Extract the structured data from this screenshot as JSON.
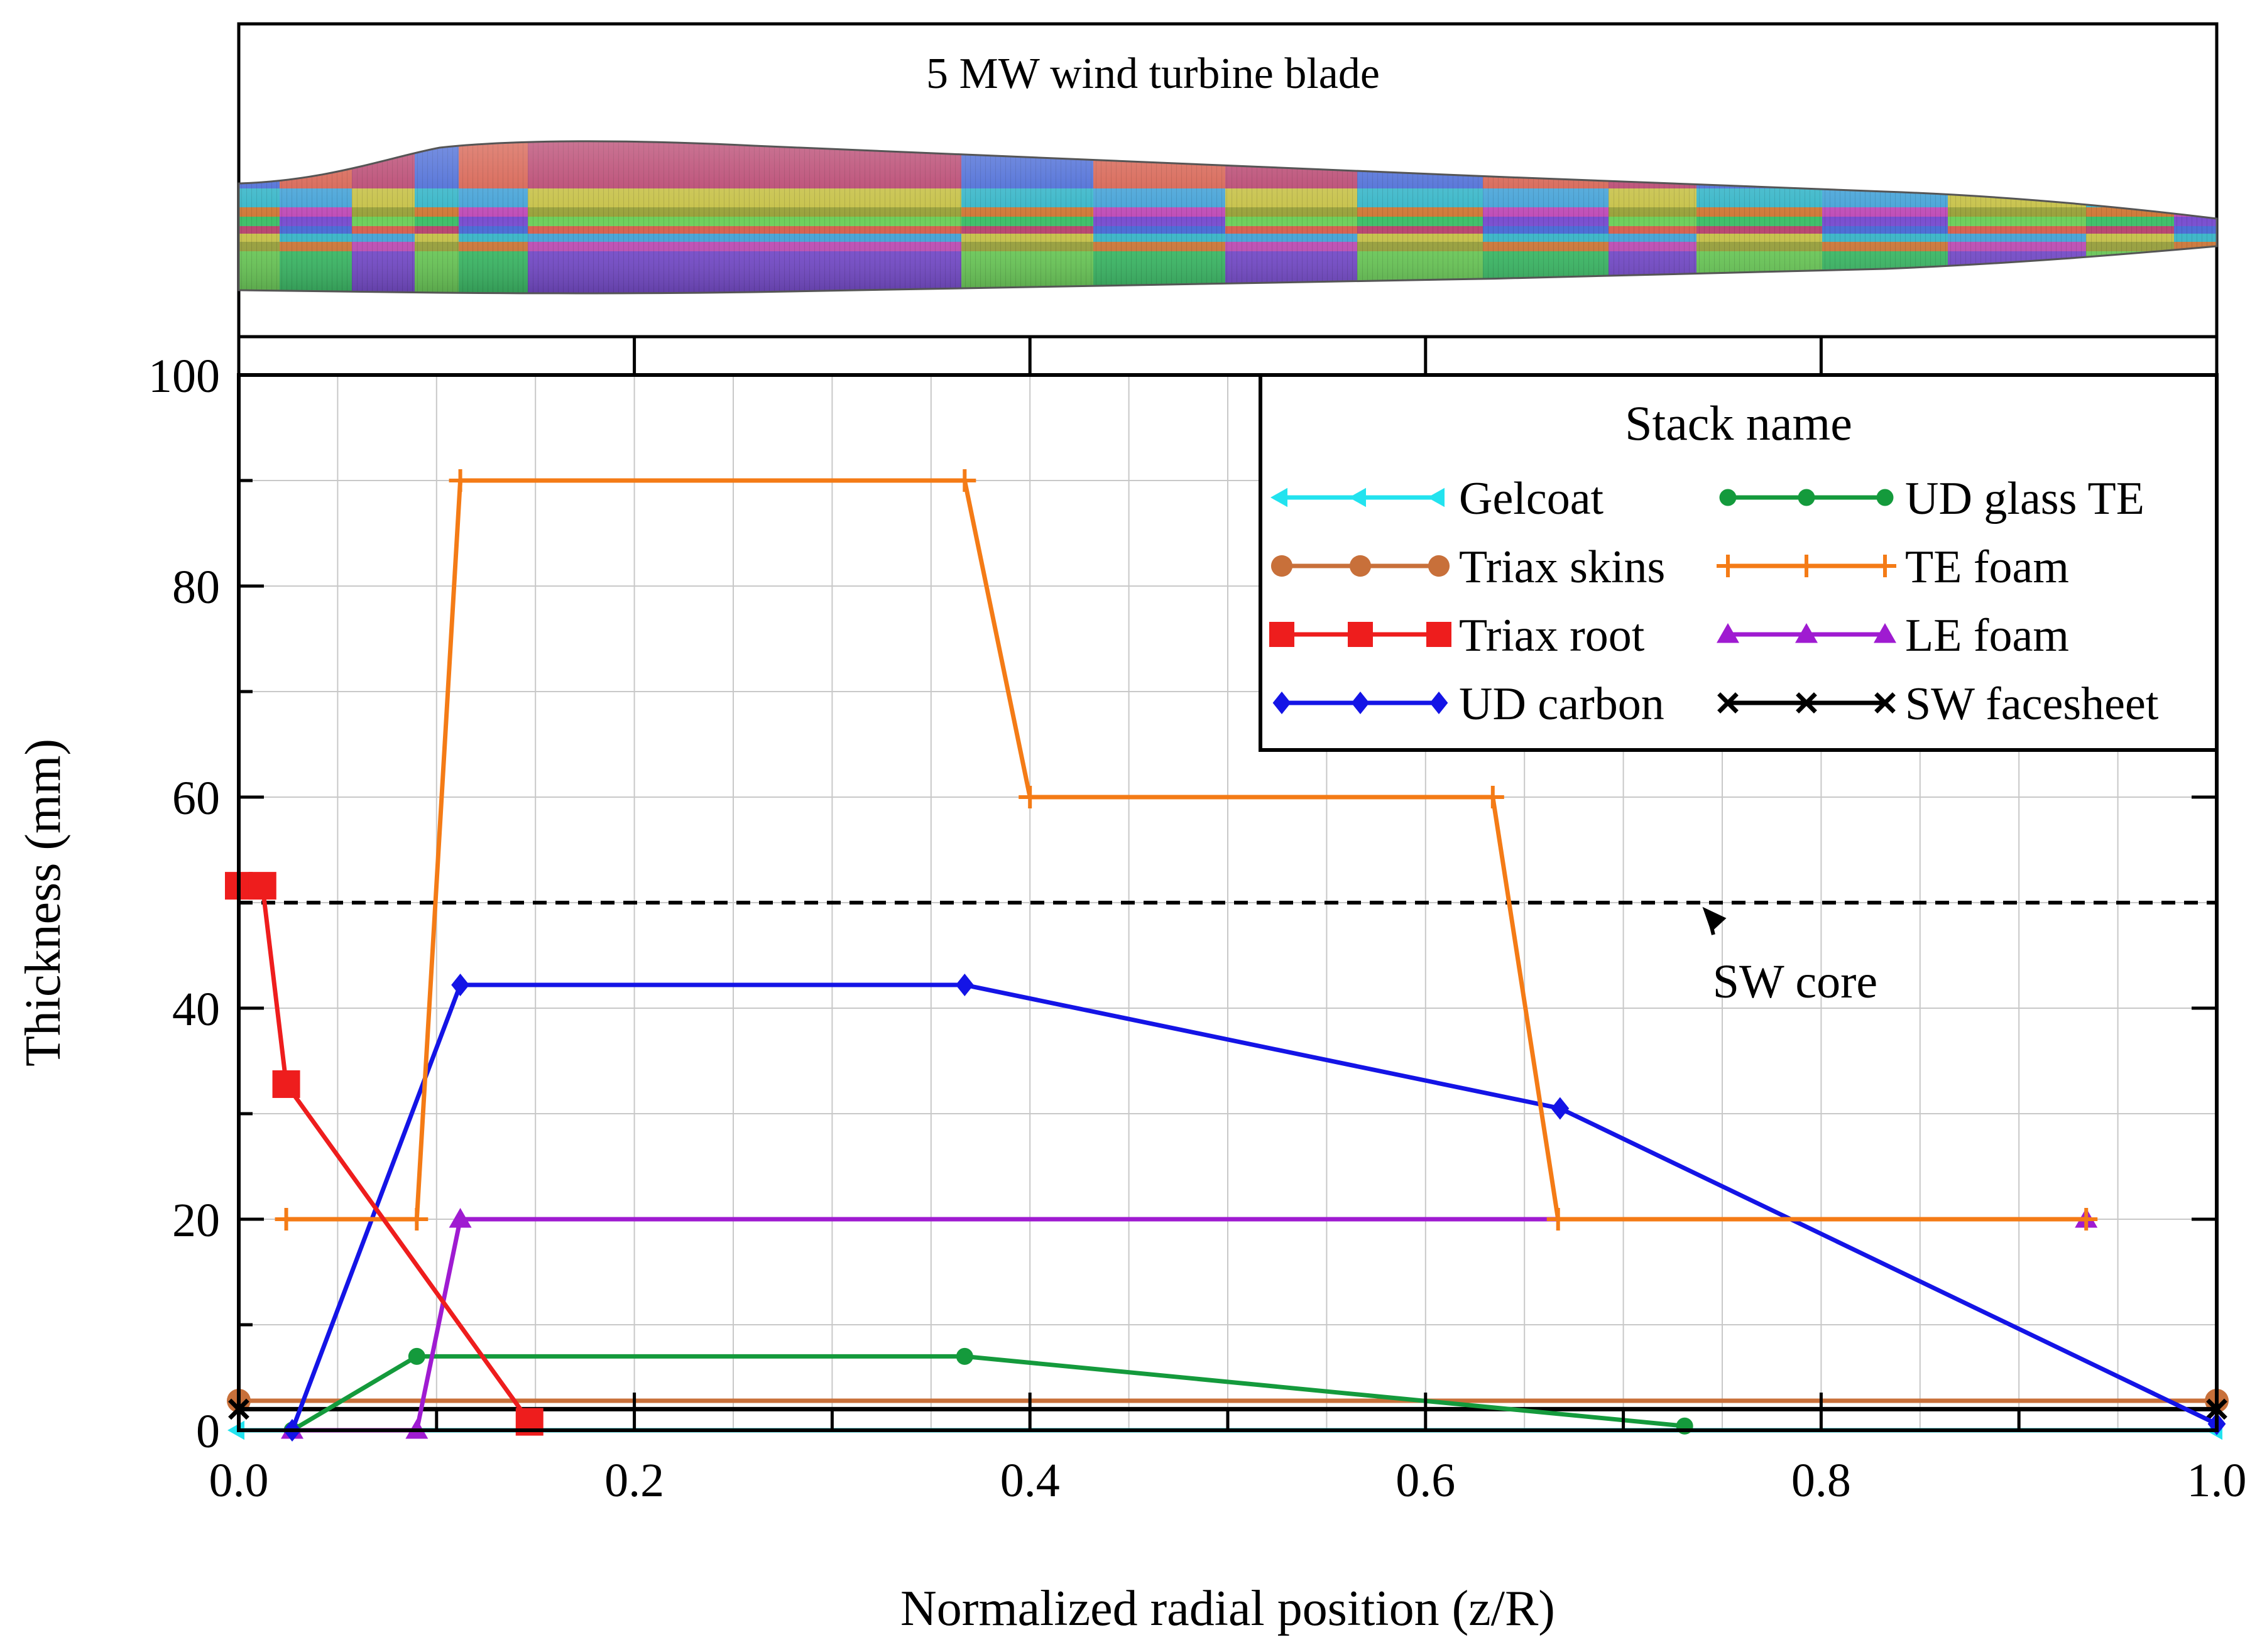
{
  "blade_panel": {
    "title": "5 MW wind turbine blade",
    "strip_colors": [
      "#4a6bd6",
      "#c7c24a",
      "#c04fb8",
      "#3fbf6a",
      "#d6604f",
      "#3ab7c9",
      "#9aa23c",
      "#7a4fd0",
      "#b8456f",
      "#48a4d8",
      "#d07a3a",
      "#6fcf5c"
    ],
    "image_label": "blade-mesh-illustration"
  },
  "chart_data": {
    "type": "line",
    "title": "",
    "xlabel": "Normalized radial position (z/R)",
    "ylabel": "Thickness (mm)",
    "xlim": [
      0.0,
      1.0
    ],
    "ylim": [
      0,
      100
    ],
    "xticks": [
      0.0,
      0.2,
      0.4,
      0.6,
      0.8,
      1.0
    ],
    "xtick_labels": [
      "0.0",
      "0.2",
      "0.4",
      "0.6",
      "0.8",
      "1.0"
    ],
    "yticks": [
      0,
      20,
      40,
      60,
      80,
      100
    ],
    "ytick_labels": [
      "0",
      "20",
      "40",
      "60",
      "80",
      "100"
    ],
    "grid": true,
    "legend_title": "Stack name",
    "legend_position": "top-right",
    "series": [
      {
        "name": "Gelcoat",
        "color": "#22e3ef",
        "marker": "tri-left",
        "x": [
          0.0,
          1.0
        ],
        "y": [
          0.0,
          0.0
        ]
      },
      {
        "name": "Triax skins",
        "color": "#c8703a",
        "marker": "circle",
        "x": [
          0.0,
          1.0
        ],
        "y": [
          2.8,
          2.8
        ]
      },
      {
        "name": "Triax root",
        "color": "#ee1d1d",
        "marker": "square",
        "x": [
          0.0,
          0.012,
          0.024,
          0.147
        ],
        "y": [
          51.6,
          51.6,
          32.8,
          0.8
        ]
      },
      {
        "name": "UD carbon",
        "color": "#1414e6",
        "marker": "diamond",
        "x": [
          0.027,
          0.112,
          0.367,
          0.668,
          1.0
        ],
        "y": [
          0.0,
          42.2,
          42.2,
          30.5,
          0.6
        ]
      },
      {
        "name": "UD glass TE",
        "color": "#149a3c",
        "marker": "dot",
        "x": [
          0.027,
          0.09,
          0.367,
          0.731
        ],
        "y": [
          0.0,
          7.0,
          7.0,
          0.4
        ]
      },
      {
        "name": "TE foam",
        "color": "#f47b16",
        "marker": "plus",
        "x": [
          0.024,
          0.09,
          0.112,
          0.367,
          0.4,
          0.634,
          0.667,
          0.934
        ],
        "y": [
          20.0,
          20.0,
          90.0,
          90.0,
          60.0,
          60.0,
          20.0,
          20.0
        ]
      },
      {
        "name": "LE foam",
        "color": "#9f1bd1",
        "marker": "triangle",
        "x": [
          0.027,
          0.09,
          0.112,
          0.934
        ],
        "y": [
          0.0,
          0.0,
          20.0,
          20.0
        ]
      },
      {
        "name": "SW facesheet",
        "color": "#000000",
        "marker": "cross",
        "x": [
          0.0,
          1.0
        ],
        "y": [
          2.0,
          2.0
        ]
      }
    ],
    "reference_lines": [
      {
        "name": "SW core",
        "y": 50,
        "style": "dashed",
        "color": "#000000"
      }
    ],
    "annotations": [
      {
        "text": "SW core",
        "x": 0.79,
        "y": 42.5,
        "arrow_to": {
          "x": 0.74,
          "y": 49.6
        }
      }
    ]
  }
}
